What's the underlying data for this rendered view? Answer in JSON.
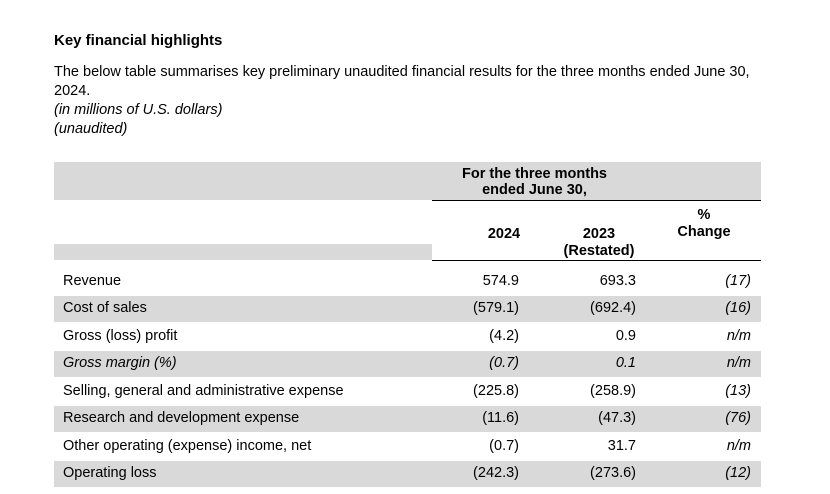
{
  "heading": "Key financial highlights",
  "intro": {
    "text": "The below table summarises key preliminary unaudited financial results for the three months ended June 30, 2024.",
    "units": "(in millions of U.S. dollars)",
    "status": "(unaudited)"
  },
  "table": {
    "group_header_line1": "For the three months",
    "group_header_line2": "ended June 30,",
    "col_2024": "2024",
    "col_2023": "2023",
    "col_2023_note": "(Restated)",
    "col_pct_line1": "%",
    "col_pct_line2": "Change",
    "rows": [
      {
        "label": "Revenue",
        "v2024": "574.9",
        "v2023": "693.3",
        "change": "(17)"
      },
      {
        "label": "Cost of sales",
        "v2024": "(579.1)",
        "v2023": "(692.4)",
        "change": "(16)"
      },
      {
        "label": "Gross (loss) profit",
        "v2024": "(4.2)",
        "v2023": "0.9",
        "change": "n/m"
      },
      {
        "label": "Gross margin (%)",
        "v2024": "(0.7)",
        "v2023": "0.1",
        "change": "n/m"
      },
      {
        "label": "Selling, general and administrative expense",
        "v2024": "(225.8)",
        "v2023": "(258.9)",
        "change": "(13)"
      },
      {
        "label": "Research and development expense",
        "v2024": "(11.6)",
        "v2023": "(47.3)",
        "change": "(76)"
      },
      {
        "label": "Other operating (expense) income, net",
        "v2024": "(0.7)",
        "v2023": "31.7",
        "change": "n/m"
      },
      {
        "label": "Operating loss",
        "v2024": "(242.3)",
        "v2023": "(273.6)",
        "change": "(12)"
      }
    ]
  }
}
